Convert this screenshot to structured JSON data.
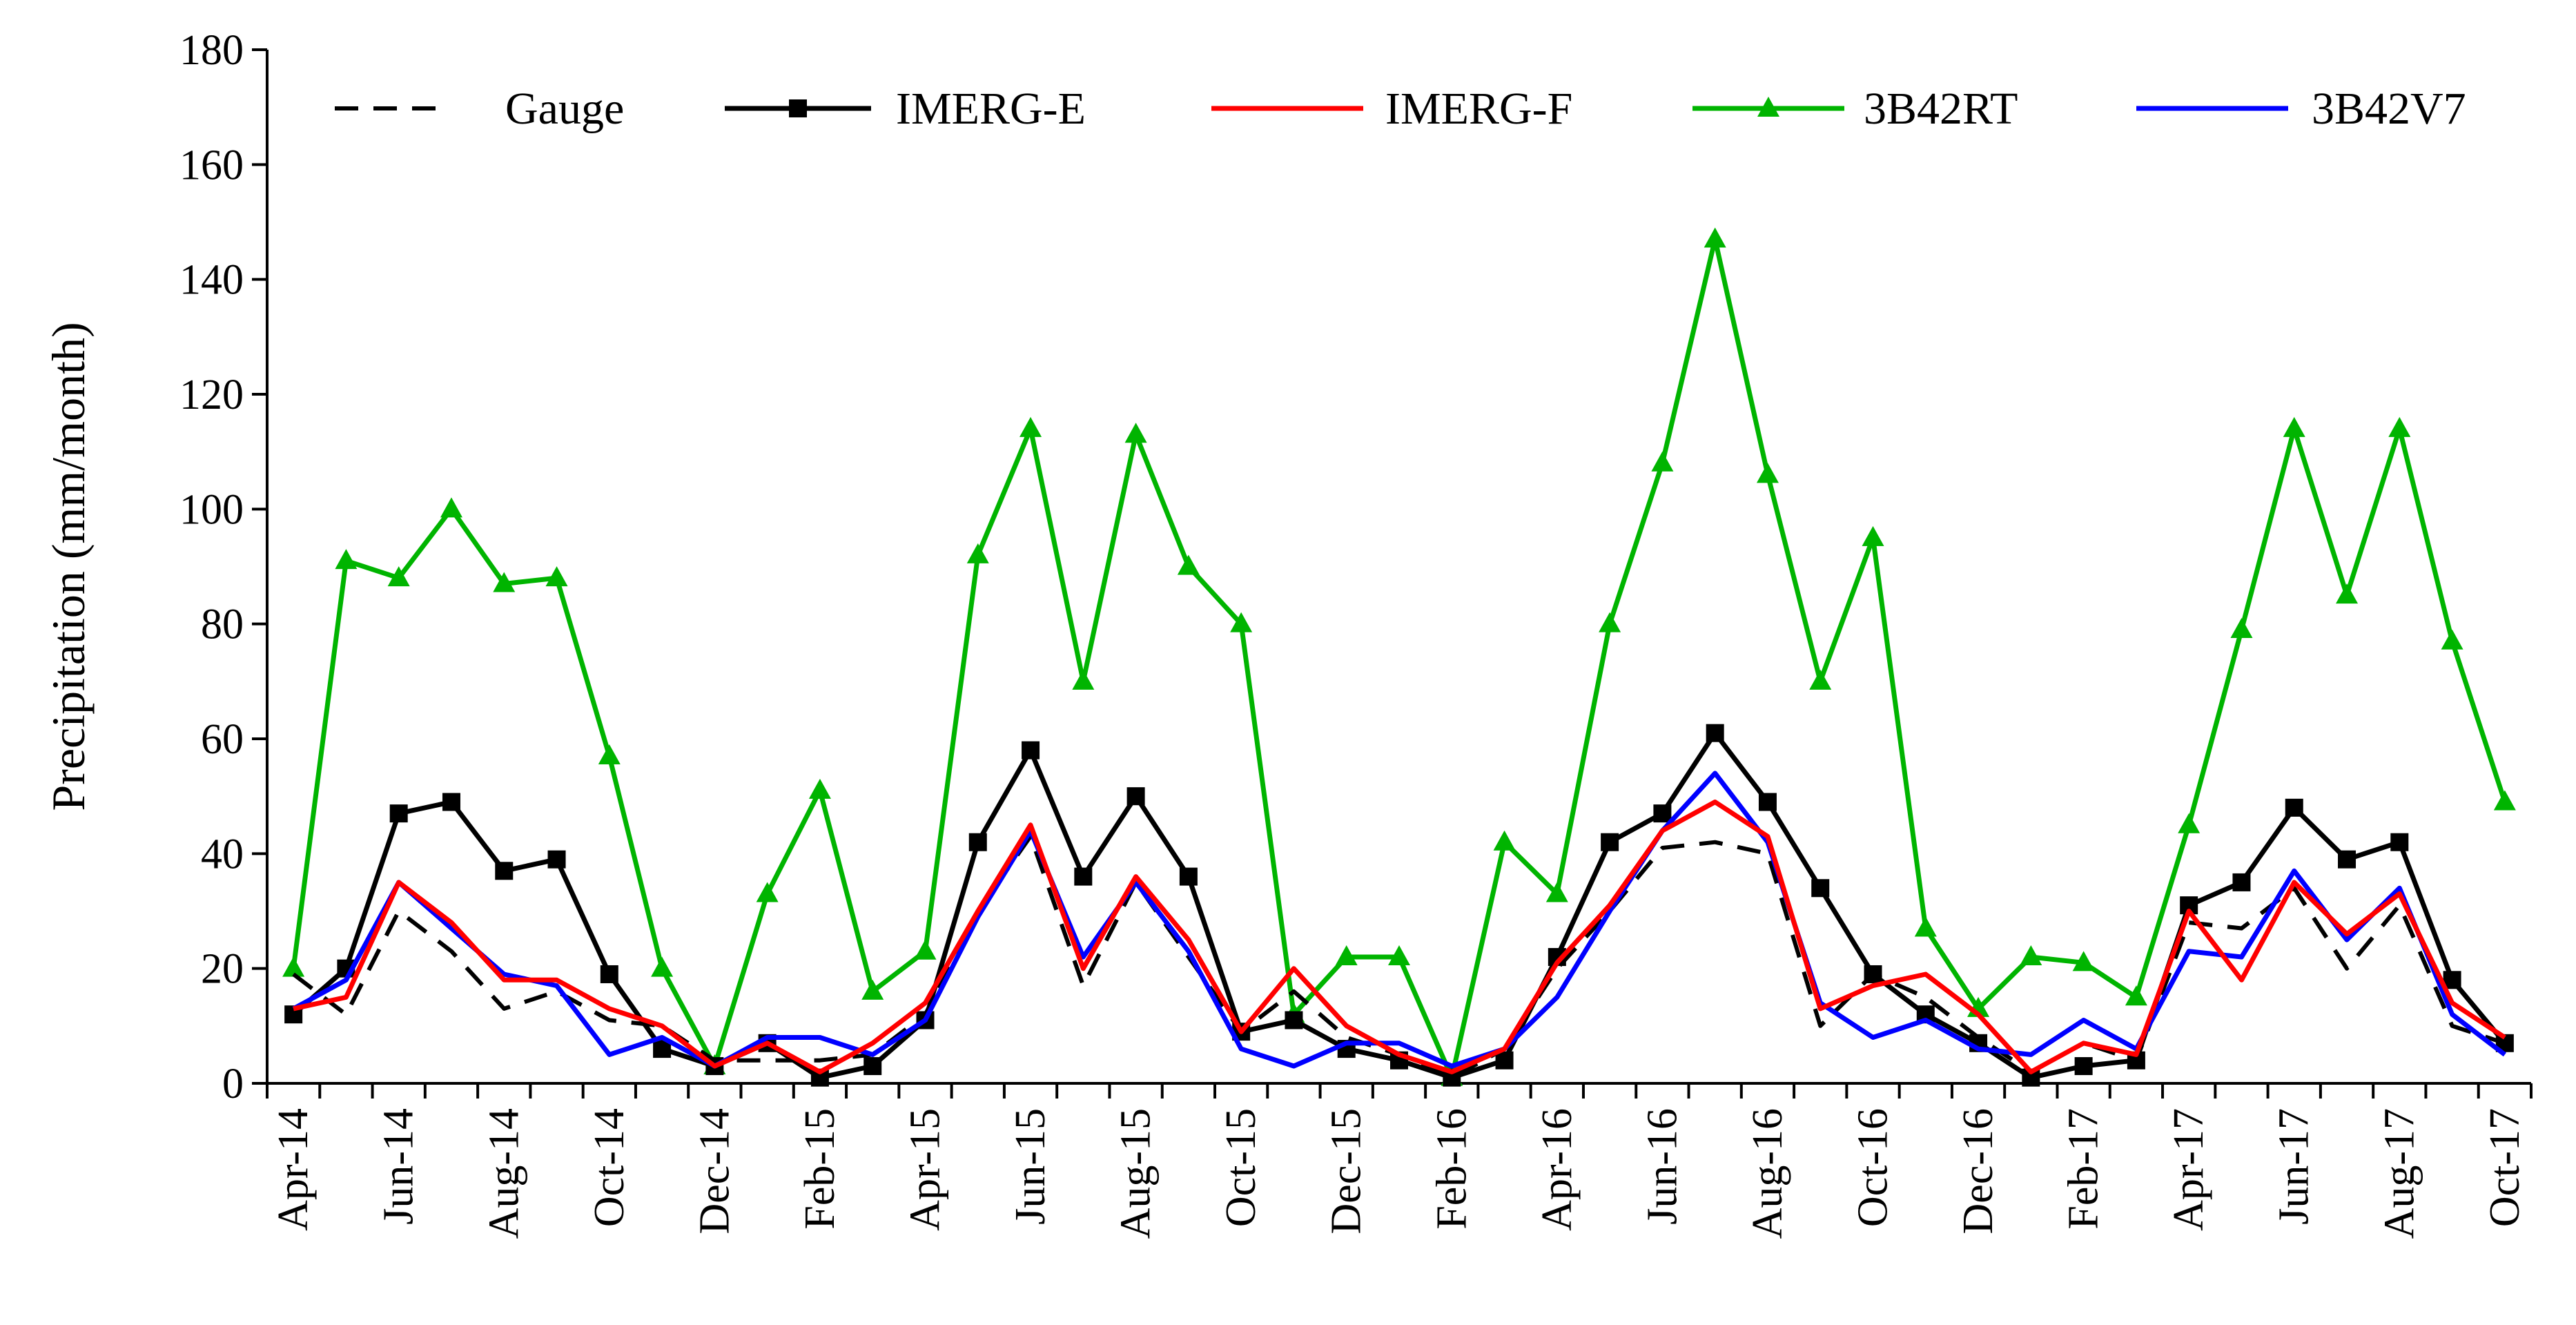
{
  "chart_data": {
    "type": "line",
    "title": "",
    "xlabel": "",
    "ylabel": "Precipitation (mm/month)",
    "ylim": [
      0,
      180
    ],
    "yticks": [
      0,
      20,
      40,
      60,
      80,
      100,
      120,
      140,
      160,
      180
    ],
    "grid": false,
    "legend_position": "top",
    "categories": [
      "Apr-14",
      "May-14",
      "Jun-14",
      "Jul-14",
      "Aug-14",
      "Sep-14",
      "Oct-14",
      "Nov-14",
      "Dec-14",
      "Jan-15",
      "Feb-15",
      "Mar-15",
      "Apr-15",
      "May-15",
      "Jun-15",
      "Jul-15",
      "Aug-15",
      "Sep-15",
      "Oct-15",
      "Nov-15",
      "Dec-15",
      "Jan-16",
      "Feb-16",
      "Mar-16",
      "Apr-16",
      "May-16",
      "Jun-16",
      "Jul-16",
      "Aug-16",
      "Sep-16",
      "Oct-16",
      "Nov-16",
      "Dec-16",
      "Jan-17",
      "Feb-17",
      "Mar-17",
      "Apr-17",
      "May-17",
      "Jun-17",
      "Jul-17",
      "Aug-17",
      "Sep-17",
      "Oct-17"
    ],
    "tick_labels": [
      "Apr-14",
      "Jun-14",
      "Aug-14",
      "Oct-14",
      "Dec-14",
      "Feb-15",
      "Apr-15",
      "Jun-15",
      "Aug-15",
      "Oct-15",
      "Dec-15",
      "Feb-16",
      "Apr-16",
      "Jun-16",
      "Aug-16",
      "Oct-16",
      "Dec-16",
      "Feb-17",
      "Apr-17",
      "Jun-17",
      "Aug-17",
      "Oct-17"
    ],
    "series": [
      {
        "name": "Gauge",
        "color": "#000000",
        "dash": "dashed",
        "marker": "none",
        "values": [
          19,
          12,
          30,
          23,
          13,
          16,
          11,
          10,
          4,
          4,
          4,
          5,
          12,
          30,
          43,
          17,
          35,
          22,
          9,
          16,
          8,
          5,
          1,
          6,
          20,
          30,
          41,
          42,
          40,
          10,
          19,
          15,
          8,
          2,
          7,
          4,
          28,
          27,
          34,
          20,
          31,
          10,
          7
        ]
      },
      {
        "name": "IMERG-E",
        "color": "#000000",
        "dash": "solid",
        "marker": "square",
        "values": [
          12,
          20,
          47,
          49,
          37,
          39,
          19,
          6,
          3,
          7,
          1,
          3,
          11,
          42,
          58,
          36,
          50,
          36,
          9,
          11,
          6,
          4,
          1,
          4,
          22,
          42,
          47,
          61,
          49,
          34,
          19,
          12,
          7,
          1,
          3,
          4,
          31,
          35,
          48,
          39,
          42,
          18,
          7
        ]
      },
      {
        "name": "IMERG-F",
        "color": "#ff0000",
        "dash": "solid",
        "marker": "none",
        "values": [
          13,
          15,
          35,
          28,
          18,
          18,
          13,
          10,
          3,
          7,
          2,
          7,
          14,
          30,
          45,
          20,
          36,
          25,
          9,
          20,
          10,
          5,
          2,
          6,
          21,
          31,
          44,
          49,
          43,
          13,
          17,
          19,
          12,
          2,
          7,
          5,
          30,
          18,
          35,
          26,
          33,
          14,
          8
        ]
      },
      {
        "name": "3B42RT",
        "color": "#00b400",
        "dash": "solid",
        "marker": "triangle",
        "values": [
          20,
          91,
          88,
          100,
          87,
          88,
          57,
          20,
          3,
          33,
          51,
          16,
          23,
          92,
          114,
          70,
          113,
          90,
          80,
          12,
          22,
          22,
          1,
          42,
          33,
          80,
          108,
          147,
          106,
          70,
          95,
          27,
          13,
          22,
          21,
          15,
          45,
          79,
          114,
          85,
          114,
          77,
          49
        ]
      },
      {
        "name": "3B42V7",
        "color": "#0000ff",
        "dash": "solid",
        "marker": "none",
        "values": [
          13,
          18,
          35,
          27,
          19,
          17,
          5,
          8,
          3,
          8,
          8,
          5,
          11,
          29,
          44,
          22,
          35,
          23,
          6,
          3,
          7,
          7,
          3,
          6,
          15,
          30,
          44,
          54,
          42,
          14,
          8,
          11,
          6,
          5,
          11,
          6,
          23,
          22,
          37,
          25,
          34,
          12,
          5
        ]
      }
    ]
  }
}
